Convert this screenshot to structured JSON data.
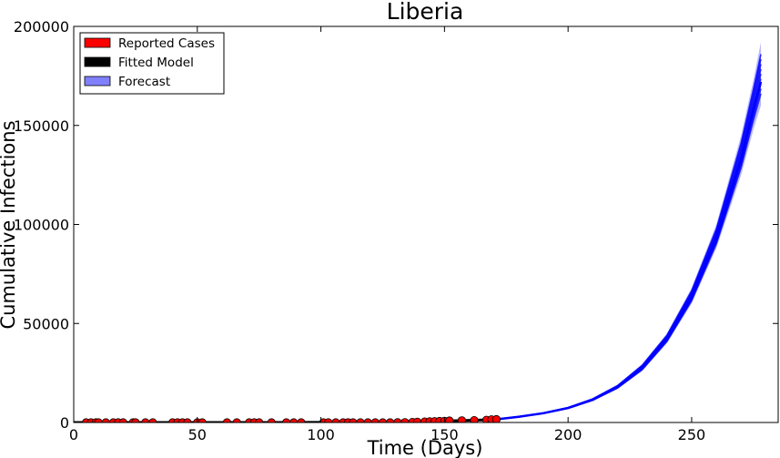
{
  "chart_data": {
    "type": "scatter",
    "title": "Liberia",
    "xlabel": "Time (Days)",
    "ylabel": "Cumulative Infections",
    "xlim": [
      0,
      285
    ],
    "ylim": [
      0,
      200000
    ],
    "x_ticks": [
      0,
      50,
      100,
      150,
      200,
      250
    ],
    "y_ticks": [
      0,
      50000,
      100000,
      150000,
      200000
    ],
    "grid": false,
    "legend_position": "top-left",
    "legend": [
      {
        "label": "Reported Cases",
        "color": "#ff0000"
      },
      {
        "label": "Fitted Model",
        "color": "#000000"
      },
      {
        "label": "Forecast",
        "color": "#8080ff"
      }
    ],
    "series": [
      {
        "name": "Reported Cases",
        "type": "scatter",
        "color": "#ff0000",
        "points": [
          [
            5,
            0
          ],
          [
            7,
            0
          ],
          [
            9,
            0
          ],
          [
            10,
            0
          ],
          [
            13,
            0
          ],
          [
            16,
            0
          ],
          [
            18,
            0
          ],
          [
            20,
            0
          ],
          [
            24,
            0
          ],
          [
            25,
            0
          ],
          [
            29,
            0
          ],
          [
            32,
            0
          ],
          [
            40,
            0
          ],
          [
            42,
            0
          ],
          [
            44,
            0
          ],
          [
            46,
            0
          ],
          [
            50,
            0
          ],
          [
            52,
            0
          ],
          [
            62,
            0
          ],
          [
            66,
            0
          ],
          [
            71,
            0
          ],
          [
            73,
            0
          ],
          [
            75,
            0
          ],
          [
            80,
            0
          ],
          [
            86,
            0
          ],
          [
            89,
            0
          ],
          [
            92,
            0
          ],
          [
            101,
            0
          ],
          [
            103,
            0
          ],
          [
            106,
            0
          ],
          [
            109,
            0
          ],
          [
            111,
            0
          ],
          [
            113,
            0
          ],
          [
            116,
            0
          ],
          [
            119,
            0
          ],
          [
            122,
            0
          ],
          [
            125,
            0
          ],
          [
            128,
            0
          ],
          [
            131,
            50
          ],
          [
            134,
            100
          ],
          [
            137,
            200
          ],
          [
            139,
            300
          ],
          [
            142,
            400
          ],
          [
            144,
            500
          ],
          [
            146,
            600
          ],
          [
            148,
            700
          ],
          [
            150,
            800
          ],
          [
            152,
            900
          ],
          [
            157,
            1000
          ],
          [
            162,
            1100
          ],
          [
            167,
            1300
          ],
          [
            169,
            1500
          ],
          [
            171,
            1600
          ]
        ]
      },
      {
        "name": "Fitted Model",
        "type": "line",
        "color": "#000000",
        "points": [
          [
            0,
            0
          ],
          [
            40,
            0
          ],
          [
            80,
            0
          ],
          [
            120,
            200
          ],
          [
            140,
            500
          ],
          [
            155,
            900
          ],
          [
            165,
            1300
          ],
          [
            172,
            1700
          ]
        ]
      },
      {
        "name": "Forecast",
        "type": "band",
        "color": "#0000ff",
        "band_color": "#8080ff",
        "x": [
          172,
          180,
          190,
          200,
          210,
          220,
          230,
          240,
          250,
          260,
          270,
          275,
          278
        ],
        "y_low": [
          1700,
          2800,
          4500,
          7000,
          11000,
          17000,
          26000,
          40000,
          60000,
          88000,
          125000,
          148000,
          160000
        ],
        "y_mid": [
          1700,
          2900,
          4700,
          7300,
          11500,
          18000,
          27500,
          42000,
          63000,
          93000,
          133000,
          158000,
          172000
        ],
        "y_high": [
          1800,
          3000,
          4900,
          7700,
          12200,
          19000,
          29500,
          45000,
          68000,
          100000,
          145000,
          173000,
          192000
        ]
      }
    ]
  }
}
